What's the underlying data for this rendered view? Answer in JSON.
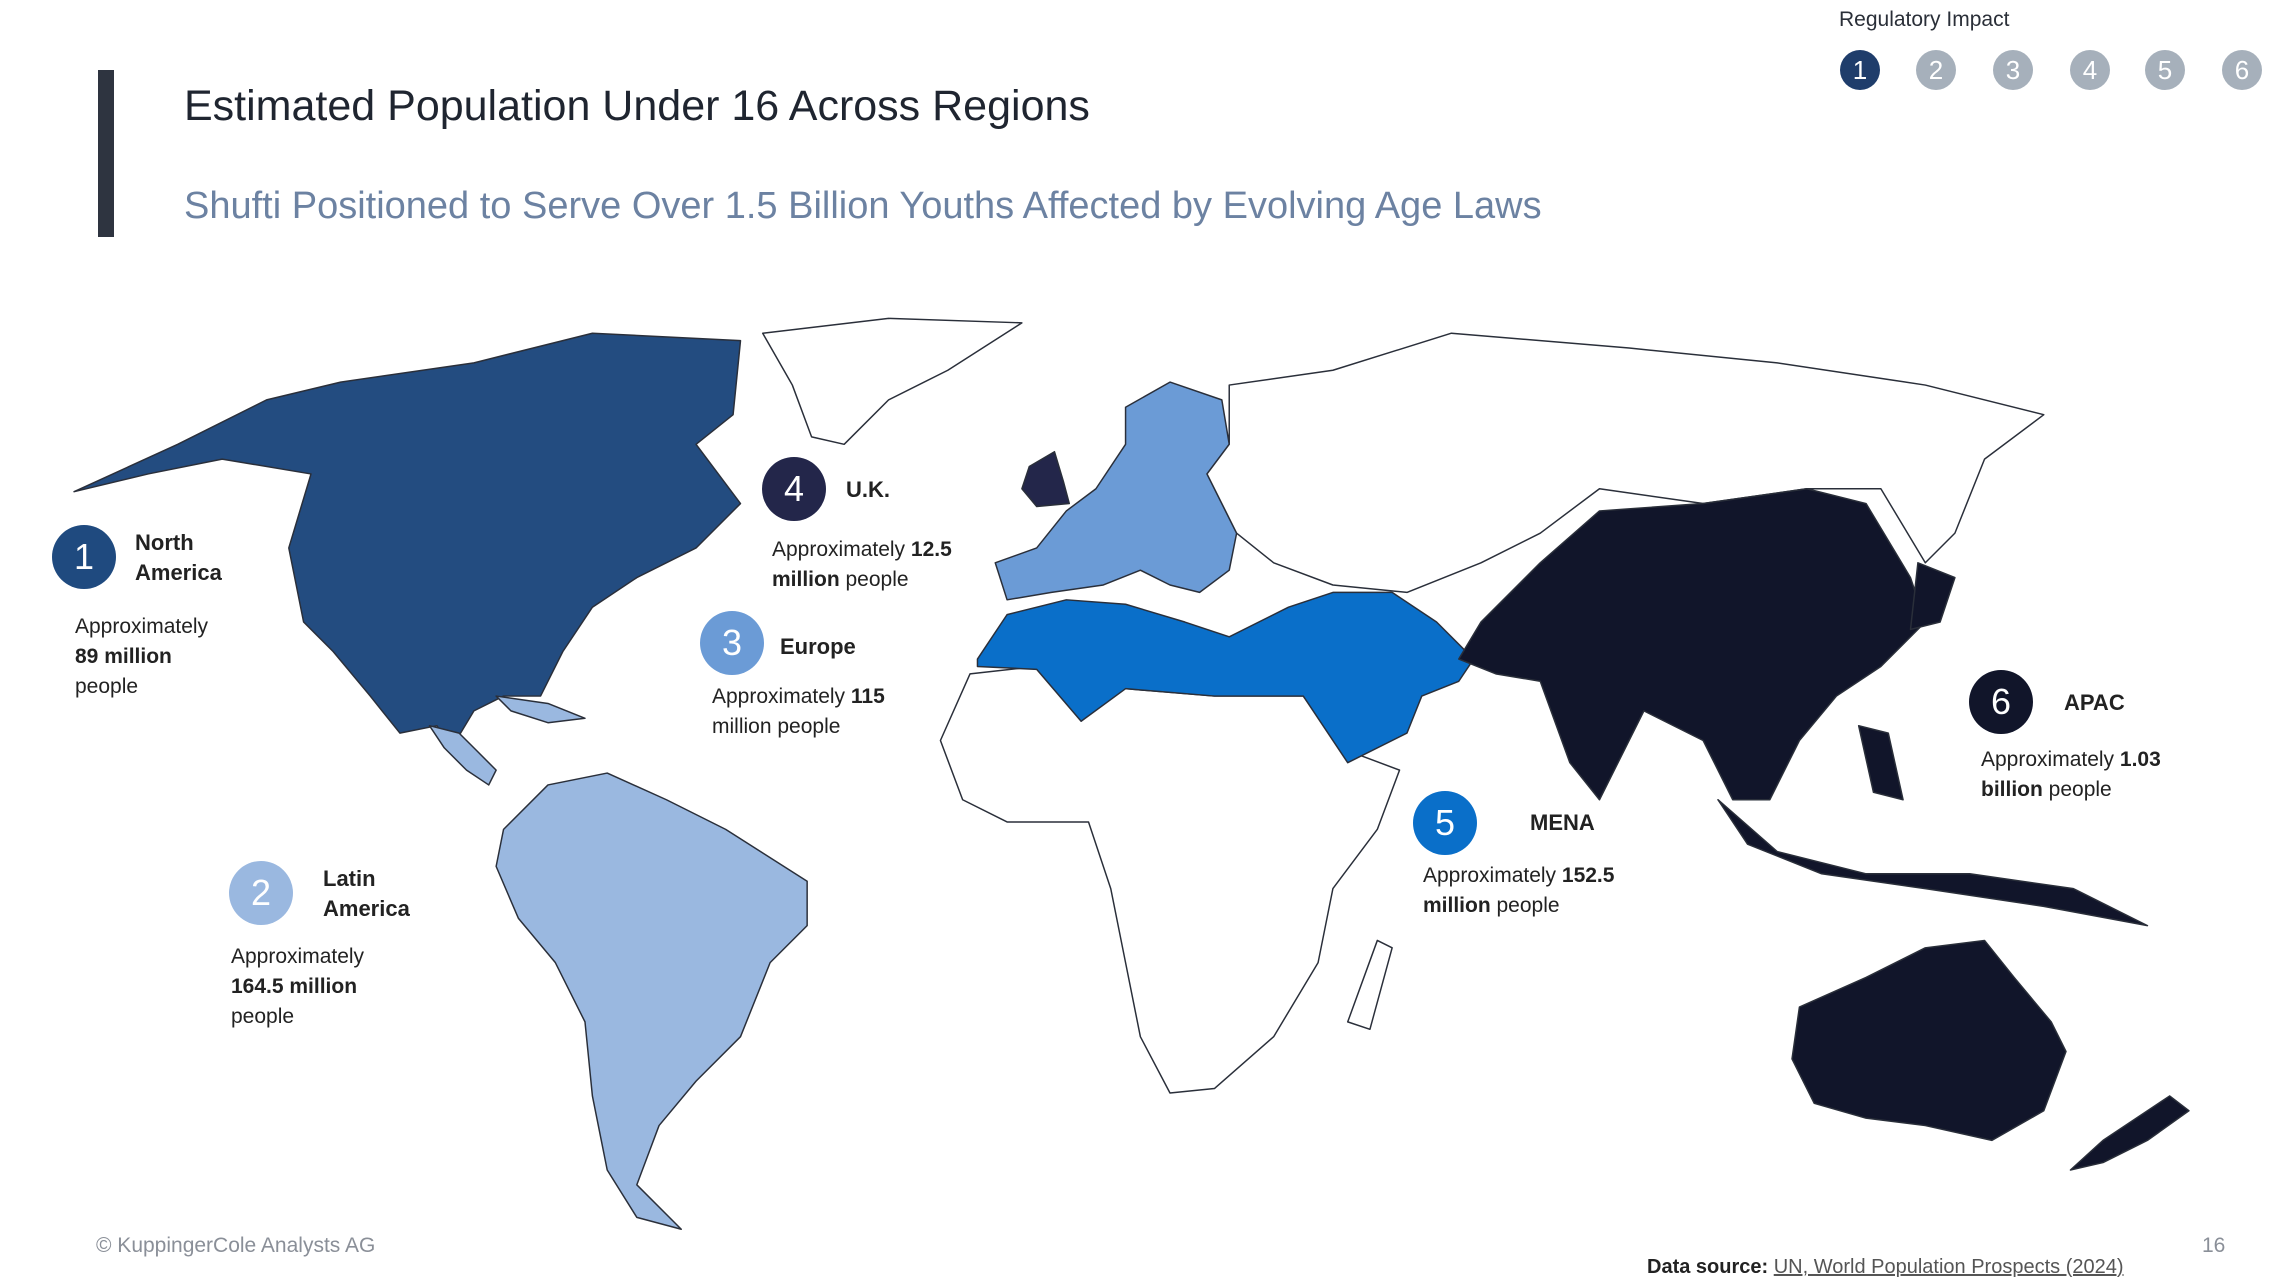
{
  "header": {
    "title": "Estimated Population Under 16 Across Regions",
    "subtitle": "Shufti Positioned to Serve Over 1.5 Billion Youths Affected by Evolving Age Laws"
  },
  "regulatory_impact": {
    "label": "Regulatory Impact",
    "steps": [
      "1",
      "2",
      "3",
      "4",
      "5",
      "6"
    ],
    "active_step": "1",
    "active_color": "#1f3d6b",
    "inactive_color": "#a6b0bb"
  },
  "regions": [
    {
      "num": "1",
      "name": "North America",
      "pre": "Approximately ",
      "bold": "89 million",
      "post": " people",
      "color": "#1f4a7f"
    },
    {
      "num": "2",
      "name": "Latin America",
      "pre": "Approximately ",
      "bold": "164.5 million",
      "post": " people",
      "color": "#9ab8e0"
    },
    {
      "num": "3",
      "name": "Europe",
      "pre": "Approximately ",
      "bold": "115",
      "post": " million people",
      "color": "#6b9bd6"
    },
    {
      "num": "4",
      "name": "U.K.",
      "pre": "Approximately ",
      "bold": "12.5 million",
      "post": " people",
      "color": "#23264a"
    },
    {
      "num": "5",
      "name": "MENA",
      "pre": "Approximately ",
      "bold": "152.5 million",
      "post": " people",
      "color": "#0a6fc9"
    },
    {
      "num": "6",
      "name": "APAC",
      "pre": "Approximately ",
      "bold": "1.03 billion",
      "post": " people",
      "color": "#11152a"
    }
  ],
  "footer": {
    "copyright": "© KuppingerCole Analysts AG",
    "page_number": "16",
    "source_label": "Data source:",
    "source_link": "UN, World Population Prospects (2024)"
  }
}
